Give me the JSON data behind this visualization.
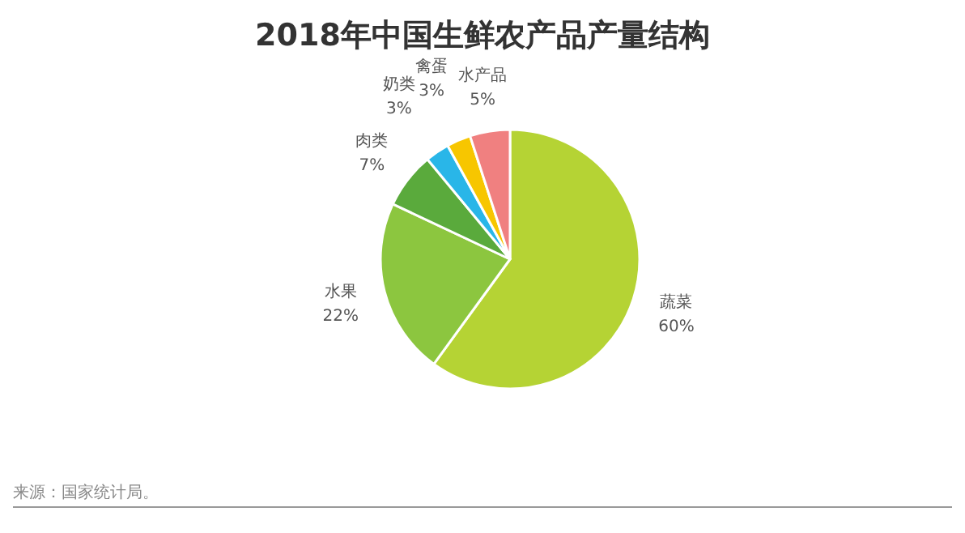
{
  "chart_data": {
    "type": "pie",
    "title": "2018年中国生鲜农产品产量结构",
    "categories": [
      "蔬菜",
      "水果",
      "肉类",
      "奶类",
      "禽蛋",
      "水产品"
    ],
    "values": [
      60,
      22,
      7,
      3,
      3,
      5
    ],
    "value_labels": [
      "60%",
      "22%",
      "7%",
      "3%",
      "3%",
      "5%"
    ],
    "colors": [
      "#b5d334",
      "#8cc63f",
      "#5aaa3c",
      "#29b6e8",
      "#f7c600",
      "#f08080"
    ],
    "annotations": [
      "来源：国家统计局。"
    ]
  }
}
